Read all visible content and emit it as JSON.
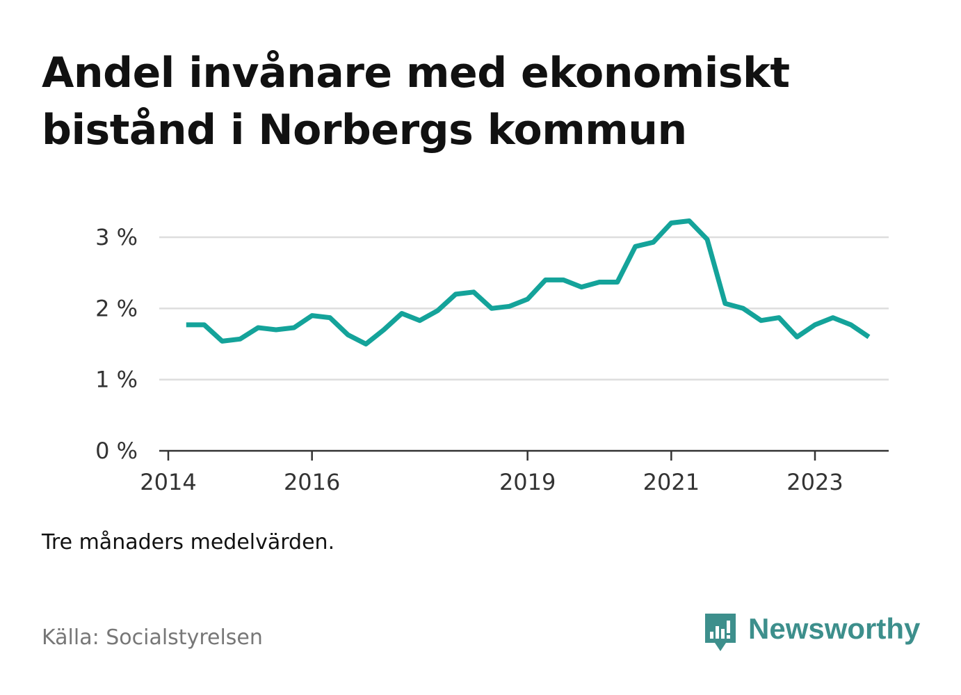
{
  "title": "Andel invånare med ekonomiskt bistånd i Norbergs kommun",
  "note": "Tre månaders medelvärden.",
  "source": "Källa: Socialstyrelsen",
  "brand": {
    "name": "Newsworthy",
    "icon": "newsworthy-logo-icon",
    "color": "#3d8f8c"
  },
  "chart_data": {
    "type": "line",
    "title": "Andel invånare med ekonomiskt bistånd i Norbergs kommun",
    "xlabel": "",
    "ylabel": "",
    "line_color": "#14a39a",
    "grid": true,
    "ylim": [
      0,
      3.3
    ],
    "y_ticks": [
      {
        "value": 0,
        "label": "0 %"
      },
      {
        "value": 1,
        "label": "1 %"
      },
      {
        "value": 2,
        "label": "2 %"
      },
      {
        "value": 3,
        "label": "3 %"
      }
    ],
    "xlim": [
      "2014-01",
      "2024-03"
    ],
    "x_ticks": [
      {
        "value": "2014-01",
        "label": "2014"
      },
      {
        "value": "2016-01",
        "label": "2016"
      },
      {
        "value": "2019-01",
        "label": "2019"
      },
      {
        "value": "2021-01",
        "label": "2021"
      },
      {
        "value": "2023-01",
        "label": "2023"
      }
    ],
    "x": [
      "2014-04",
      "2014-07",
      "2014-10",
      "2015-01",
      "2015-04",
      "2015-07",
      "2015-10",
      "2016-01",
      "2016-04",
      "2016-07",
      "2016-10",
      "2017-01",
      "2017-04",
      "2017-07",
      "2017-10",
      "2018-01",
      "2018-04",
      "2018-07",
      "2018-10",
      "2019-01",
      "2019-04",
      "2019-07",
      "2019-10",
      "2020-01",
      "2020-04",
      "2020-07",
      "2020-10",
      "2021-01",
      "2021-04",
      "2021-07",
      "2021-10",
      "2022-01",
      "2022-04",
      "2022-07",
      "2022-10",
      "2023-01",
      "2023-04",
      "2023-07",
      "2023-10"
    ],
    "series": [
      {
        "values": [
          1.77,
          1.77,
          1.54,
          1.57,
          1.73,
          1.7,
          1.73,
          1.9,
          1.87,
          1.63,
          1.5,
          1.7,
          1.93,
          1.83,
          1.97,
          2.2,
          2.23,
          2.0,
          2.03,
          2.13,
          2.4,
          2.4,
          2.3,
          2.37,
          2.37,
          2.87,
          2.93,
          3.2,
          3.23,
          2.97,
          2.07,
          2.0,
          1.83,
          1.87,
          1.6,
          1.77,
          1.87,
          1.77,
          1.6
        ]
      }
    ]
  }
}
